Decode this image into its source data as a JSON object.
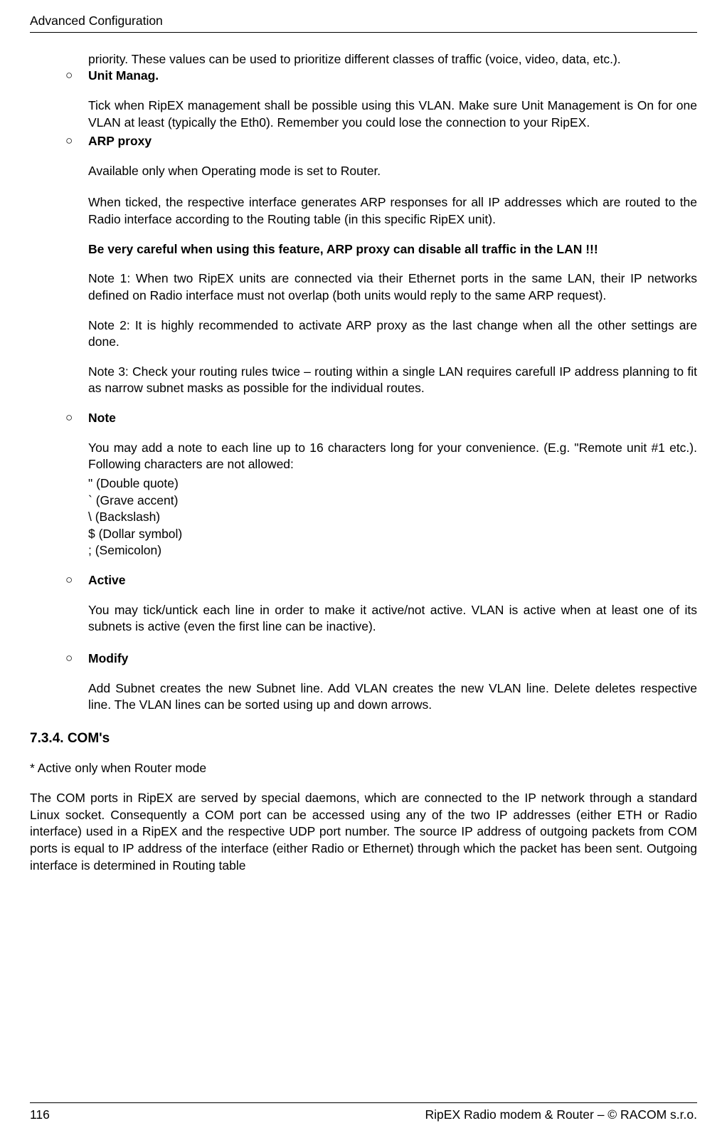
{
  "header": {
    "title": "Advanced Configuration"
  },
  "content": {
    "intro_cont": "priority. These values can be used to prioritize different classes of traffic (voice, video, data, etc.).",
    "unit_manag": {
      "label": "Unit Manag.",
      "body": "Tick when RipEX management shall be possible using this VLAN. Make sure Unit Management is On for one VLAN at least (typically the Eth0). Remember you could lose the connection to your RipEX."
    },
    "arp_proxy": {
      "label": "ARP proxy",
      "p1": "Available only when Operating mode is set to Router.",
      "p2": "When ticked, the respective interface generates ARP responses for all IP addresses which are routed to the Radio interface according to the Routing table (in this specific RipEX unit).",
      "warn": "Be very careful when using this feature, ARP proxy can disable all traffic in the LAN !!!",
      "note1": "Note 1: When two RipEX units are connected via their Ethernet ports in the same LAN, their IP networks defined on Radio interface must not overlap (both units would reply to the same ARP request).",
      "note2": "Note 2: It is highly recommended to activate ARP proxy as the last change when all the other settings are done.",
      "note3": "Note 3: Check your routing rules twice – routing within a single LAN requires carefull IP address planning to fit as narrow subnet masks as possible for the individual routes."
    },
    "note": {
      "label": "Note",
      "body": "You may add a note to each line up to 16 characters long for your convenience. (E.g. \"Remote unit #1 etc.). Following characters are not allowed:",
      "c1": "\" (Double quote)",
      "c2": "` (Grave accent)",
      "c3": "\\ (Backslash)",
      "c4": "$ (Dollar symbol)",
      "c5": "; (Semicolon)"
    },
    "active": {
      "label": "Active",
      "body": "You may tick/untick each line in order to make it active/not active. VLAN is active when at least one of its subnets is active (even the first line can be inactive)."
    },
    "modify": {
      "label": "Modify",
      "body": "Add Subnet creates the new Subnet line. Add VLAN creates the new VLAN line. Delete deletes respective line. The VLAN lines can be sorted using up and down arrows."
    }
  },
  "section": {
    "heading": "7.3.4. COM's",
    "p1": "* Active only when Router mode",
    "p2": "The COM ports in RipEX are served by special daemons, which are connected to the IP network through a standard Linux socket. Consequently a COM port can be accessed using any of the two IP addresses (either ETH or Radio interface) used in a RipEX and the respective UDP port number. The source IP address of outgoing packets from COM ports is equal to IP address of the interface (either Radio or Ethernet) through which the packet has been sent. Outgoing interface is determined in Routing table"
  },
  "footer": {
    "page": "116",
    "right": "RipEX Radio modem & Router – © RACOM s.r.o."
  }
}
